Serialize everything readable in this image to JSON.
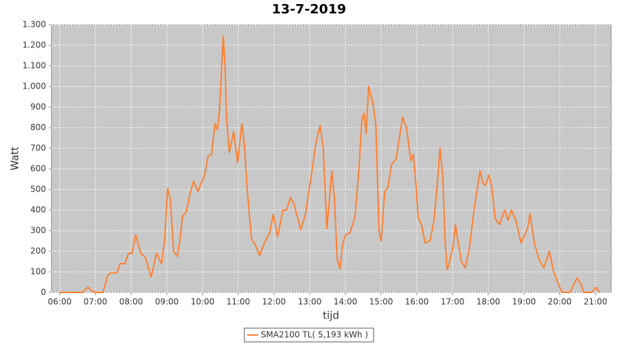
{
  "chart_data": {
    "type": "line",
    "title": "13-7-2019",
    "y_label": "Watt",
    "x_label": "tijd",
    "x": [
      6.0,
      6.63,
      6.79,
      6.92,
      7.02,
      7.21,
      7.35,
      7.44,
      7.6,
      7.69,
      7.83,
      7.92,
      8.02,
      8.13,
      8.27,
      8.4,
      8.56,
      8.71,
      8.85,
      8.94,
      9.02,
      9.1,
      9.19,
      9.29,
      9.37,
      9.44,
      9.54,
      9.65,
      9.75,
      9.87,
      9.96,
      10.06,
      10.15,
      10.25,
      10.35,
      10.42,
      10.48,
      10.58,
      10.63,
      10.67,
      10.75,
      10.87,
      10.98,
      11.1,
      11.17,
      11.25,
      11.37,
      11.48,
      11.6,
      11.73,
      11.88,
      11.98,
      12.1,
      12.25,
      12.35,
      12.46,
      12.56,
      12.75,
      12.88,
      13.02,
      13.17,
      13.29,
      13.38,
      13.48,
      13.62,
      13.69,
      13.77,
      13.85,
      13.92,
      14.0,
      14.13,
      14.27,
      14.38,
      14.46,
      14.52,
      14.58,
      14.65,
      14.77,
      14.85,
      14.94,
      15.0,
      15.1,
      15.19,
      15.29,
      15.42,
      15.6,
      15.71,
      15.83,
      15.9,
      15.96,
      16.04,
      16.13,
      16.23,
      16.37,
      16.48,
      16.56,
      16.65,
      16.73,
      16.79,
      16.85,
      16.92,
      17.02,
      17.08,
      17.15,
      17.25,
      17.35,
      17.46,
      17.6,
      17.69,
      17.77,
      17.85,
      17.92,
      18.02,
      18.1,
      18.19,
      18.31,
      18.46,
      18.56,
      18.65,
      18.77,
      18.92,
      19.02,
      19.1,
      19.17,
      19.29,
      19.42,
      19.56,
      19.71,
      19.83,
      19.94,
      20.06,
      20.29,
      20.37,
      20.48,
      20.6,
      20.67,
      20.9,
      21.02,
      21.12
    ],
    "series": [
      {
        "name": "SMA2100 TL( 5,193 kWh )",
        "color": "#ff7f2f",
        "values": [
          0,
          0,
          25,
          5,
          0,
          0,
          85,
          95,
          95,
          140,
          140,
          190,
          190,
          280,
          190,
          170,
          75,
          190,
          140,
          260,
          505,
          450,
          200,
          175,
          260,
          370,
          390,
          480,
          540,
          490,
          530,
          570,
          660,
          670,
          820,
          790,
          900,
          1245,
          1100,
          850,
          680,
          780,
          630,
          820,
          720,
          500,
          260,
          230,
          180,
          240,
          290,
          380,
          270,
          400,
          400,
          460,
          430,
          305,
          380,
          540,
          720,
          810,
          700,
          310,
          590,
          460,
          160,
          115,
          230,
          280,
          290,
          370,
          600,
          840,
          870,
          770,
          1000,
          920,
          820,
          300,
          250,
          490,
          510,
          620,
          650,
          850,
          800,
          640,
          670,
          560,
          360,
          330,
          240,
          250,
          350,
          500,
          700,
          550,
          250,
          110,
          150,
          230,
          330,
          250,
          150,
          120,
          200,
          400,
          500,
          590,
          530,
          520,
          570,
          510,
          360,
          330,
          400,
          350,
          400,
          350,
          240,
          280,
          310,
          380,
          240,
          160,
          120,
          200,
          100,
          50,
          0,
          0,
          30,
          70,
          40,
          0,
          0,
          25,
          0
        ]
      }
    ],
    "xlim": [
      5.77,
      21.44
    ],
    "xticks": [
      {
        "value": 6,
        "label": "06:00"
      },
      {
        "value": 7,
        "label": "07:00"
      },
      {
        "value": 8,
        "label": "08:00"
      },
      {
        "value": 9,
        "label": "09:00"
      },
      {
        "value": 10,
        "label": "10:00"
      },
      {
        "value": 11,
        "label": "11:00"
      },
      {
        "value": 12,
        "label": "12:00"
      },
      {
        "value": 13,
        "label": "13:00"
      },
      {
        "value": 14,
        "label": "14:00"
      },
      {
        "value": 15,
        "label": "15:00"
      },
      {
        "value": 16,
        "label": "16:00"
      },
      {
        "value": 17,
        "label": "17:00"
      },
      {
        "value": 18,
        "label": "18:00"
      },
      {
        "value": 19,
        "label": "19:00"
      },
      {
        "value": 20,
        "label": "20:00"
      },
      {
        "value": 21,
        "label": "21:00"
      }
    ],
    "ylim": [
      0,
      1300
    ],
    "yticks": [
      0,
      100,
      200,
      300,
      400,
      500,
      600,
      700,
      800,
      900,
      {
        "value": 1000,
        "label": "1.000"
      },
      {
        "value": 1100,
        "label": "1.100"
      },
      {
        "value": 1200,
        "label": "1.200"
      },
      {
        "value": 1300,
        "label": "1.300"
      }
    ],
    "grid": true,
    "plot_background": "#c8c8c8",
    "legend": "bottom"
  }
}
